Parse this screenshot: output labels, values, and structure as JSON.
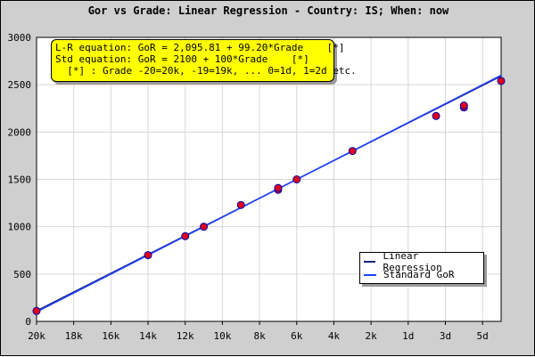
{
  "title": "Gor vs Grade: Linear Regression - Country: IS; When: now",
  "equations": {
    "line1": "L-R equation: GoR = 2,095.81 + 99.20*Grade    [*]",
    "line2": "Std equation: GoR = 2100 + 100*Grade    [*]",
    "line3": "  [*] : Grade -20=20k, -19=19k, ... 0=1d, 1=2d etc."
  },
  "legend": {
    "items": [
      {
        "label": "Linear Regression",
        "color": "#1a237e"
      },
      {
        "label": "Standard GoR",
        "color": "#1e40ff"
      }
    ]
  },
  "colors": {
    "background": "#cfcfcf",
    "plot_area": "#ffffff",
    "point_fill": "#e0001a",
    "point_stroke": "#0000aa",
    "eqbox": "#ffff00"
  },
  "chart_data": {
    "type": "scatter",
    "title": "Gor vs Grade: Linear Regression - Country: IS; When: now",
    "xlabel": "",
    "ylabel": "",
    "xlim": [
      -20,
      5
    ],
    "ylim": [
      0,
      3000
    ],
    "grid": true,
    "legend_position": "bottom-right",
    "x_ticks": [
      {
        "value": -20,
        "label": "20k"
      },
      {
        "value": -18,
        "label": "18k"
      },
      {
        "value": -16,
        "label": "16k"
      },
      {
        "value": -14,
        "label": "14k"
      },
      {
        "value": -12,
        "label": "12k"
      },
      {
        "value": -10,
        "label": "10k"
      },
      {
        "value": -8,
        "label": "8k"
      },
      {
        "value": -6,
        "label": "6k"
      },
      {
        "value": -4,
        "label": "4k"
      },
      {
        "value": -2,
        "label": "2k"
      },
      {
        "value": 0,
        "label": "1d"
      },
      {
        "value": 2,
        "label": "3d"
      },
      {
        "value": 4,
        "label": "5d"
      }
    ],
    "y_ticks": [
      0,
      500,
      1000,
      1500,
      2000,
      2500,
      3000
    ],
    "points": {
      "x": [
        -20,
        -14,
        -12,
        -11,
        -9,
        -7,
        -7,
        -6,
        -3,
        1.5,
        3,
        3,
        5
      ],
      "y": [
        110,
        700,
        900,
        1000,
        1230,
        1390,
        1410,
        1500,
        1800,
        2170,
        2260,
        2280,
        2540
      ]
    },
    "series": [
      {
        "name": "Linear Regression",
        "intercept": 2095.81,
        "slope": 99.2
      },
      {
        "name": "Standard GoR",
        "intercept": 2100,
        "slope": 100
      }
    ]
  }
}
